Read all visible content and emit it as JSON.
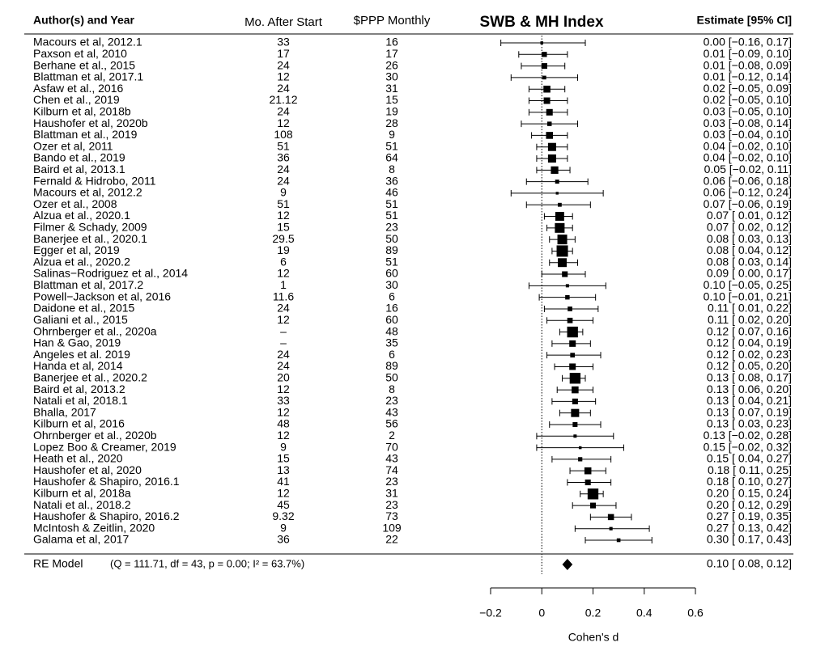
{
  "chart_data": {
    "type": "forest",
    "headers": {
      "study": "Author(s) and Year",
      "months": "Mo. After Start",
      "ppp": "$PPP Monthly",
      "title": "SWB & MH Index",
      "estimate": "Estimate [95% CI]"
    },
    "categories": [
      "Macours et al, 2012.1",
      "Paxson et al, 2010",
      "Berhane et al., 2015",
      "Blattman et al, 2017.1",
      "Asfaw et al., 2016",
      "Chen et al., 2019",
      "Kilburn et al, 2018b",
      "Haushofer et al, 2020b",
      "Blattman et al., 2019",
      "Ozer et al, 2011",
      "Bando et al., 2019",
      "Baird et al, 2013.1",
      "Fernald & Hidrobo, 2011",
      "Macours et al, 2012.2",
      "Ozer et al., 2008",
      "Alzua et al., 2020.1",
      "Filmer & Schady, 2009",
      "Banerjee et al., 2020.1",
      "Egger et al, 2019",
      "Alzua et al., 2020.2",
      "Salinas−Rodriguez et al., 2014",
      "Blattman et al, 2017.2",
      "Powell−Jackson et al, 2016",
      "Daidone et al., 2015",
      "Galiani et al., 2015",
      "Ohrnberger et al., 2020a",
      "Han & Gao, 2019",
      "Angeles et al. 2019",
      "Handa et al, 2014",
      "Banerjee et al., 2020.2",
      "Baird et al, 2013.2",
      "Natali et al, 2018.1",
      "Bhalla, 2017",
      "Kilburn et al, 2016",
      "Ohrnberger et al., 2020b",
      "Lopez Boo & Creamer, 2019",
      "Heath et al., 2020",
      "Haushofer et al, 2020",
      "Haushofer & Shapiro, 2016.1",
      "Kilburn et al, 2018a",
      "Natali et al., 2018.2",
      "Haushofer & Shapiro, 2016.2",
      "McIntosh & Zeitlin, 2020",
      "Galama et al, 2017"
    ],
    "months": [
      33,
      17,
      24,
      12,
      24,
      21.12,
      24,
      12,
      108,
      51,
      36,
      24,
      24,
      9,
      51,
      12,
      15,
      29.5,
      19,
      6,
      12,
      1,
      11.6,
      24,
      12,
      "–",
      "–",
      24,
      24,
      20,
      12,
      33,
      12,
      48,
      12,
      9,
      15,
      13,
      41,
      12,
      45,
      9.32,
      9,
      36
    ],
    "ppp": [
      16,
      17,
      26,
      30,
      31,
      15,
      19,
      28,
      9,
      51,
      64,
      8,
      36,
      46,
      51,
      51,
      23,
      50,
      89,
      51,
      60,
      30,
      6,
      16,
      60,
      48,
      35,
      6,
      89,
      50,
      8,
      23,
      43,
      56,
      2,
      70,
      43,
      74,
      23,
      31,
      23,
      73,
      109,
      22
    ],
    "values": [
      0.0,
      0.01,
      0.01,
      0.01,
      0.02,
      0.02,
      0.03,
      0.03,
      0.03,
      0.04,
      0.04,
      0.05,
      0.06,
      0.06,
      0.07,
      0.07,
      0.07,
      0.08,
      0.08,
      0.08,
      0.09,
      0.1,
      0.1,
      0.11,
      0.11,
      0.12,
      0.12,
      0.12,
      0.12,
      0.13,
      0.13,
      0.13,
      0.13,
      0.13,
      0.13,
      0.15,
      0.15,
      0.18,
      0.18,
      0.2,
      0.2,
      0.27,
      0.27,
      0.3
    ],
    "lower": [
      -0.16,
      -0.09,
      -0.08,
      -0.12,
      -0.05,
      -0.05,
      -0.05,
      -0.08,
      -0.04,
      -0.02,
      -0.02,
      -0.02,
      -0.06,
      -0.12,
      -0.06,
      0.01,
      0.02,
      0.03,
      0.04,
      0.03,
      0.0,
      -0.05,
      -0.01,
      0.01,
      0.02,
      0.07,
      0.04,
      0.02,
      0.05,
      0.08,
      0.06,
      0.04,
      0.07,
      0.03,
      -0.02,
      -0.02,
      0.04,
      0.11,
      0.1,
      0.15,
      0.12,
      0.19,
      0.13,
      0.17
    ],
    "upper": [
      0.17,
      0.1,
      0.09,
      0.14,
      0.09,
      0.1,
      0.1,
      0.14,
      0.1,
      0.1,
      0.1,
      0.11,
      0.18,
      0.24,
      0.19,
      0.12,
      0.12,
      0.13,
      0.12,
      0.14,
      0.17,
      0.25,
      0.21,
      0.22,
      0.2,
      0.16,
      0.19,
      0.23,
      0.2,
      0.17,
      0.2,
      0.21,
      0.19,
      0.23,
      0.28,
      0.32,
      0.27,
      0.25,
      0.27,
      0.24,
      0.29,
      0.35,
      0.42,
      0.43
    ],
    "value_labels": [
      "0.00 [−0.16, 0.17]",
      "0.01 [−0.09, 0.10]",
      "0.01 [−0.08, 0.09]",
      "0.01 [−0.12, 0.14]",
      "0.02 [−0.05, 0.09]",
      "0.02 [−0.05, 0.10]",
      "0.03 [−0.05, 0.10]",
      "0.03 [−0.08, 0.14]",
      "0.03 [−0.04, 0.10]",
      "0.04 [−0.02, 0.10]",
      "0.04 [−0.02, 0.10]",
      "0.05 [−0.02, 0.11]",
      "0.06 [−0.06, 0.18]",
      "0.06 [−0.12, 0.24]",
      "0.07 [−0.06, 0.19]",
      "0.07 [ 0.01, 0.12]",
      "0.07 [ 0.02, 0.12]",
      "0.08 [ 0.03, 0.13]",
      "0.08 [ 0.04, 0.12]",
      "0.08 [ 0.03, 0.14]",
      "0.09 [ 0.00, 0.17]",
      "0.10 [−0.05, 0.25]",
      "0.10 [−0.01, 0.21]",
      "0.11 [ 0.01, 0.22]",
      "0.11 [ 0.02, 0.20]",
      "0.12 [ 0.07, 0.16]",
      "0.12 [ 0.04, 0.19]",
      "0.12 [ 0.02, 0.23]",
      "0.12 [ 0.05, 0.20]",
      "0.13 [ 0.08, 0.17]",
      "0.13 [ 0.06, 0.20]",
      "0.13 [ 0.04, 0.21]",
      "0.13 [ 0.07, 0.19]",
      "0.13 [ 0.03, 0.23]",
      "0.13 [−0.02, 0.28]",
      "0.15 [−0.02, 0.32]",
      "0.15 [ 0.04, 0.27]",
      "0.18 [ 0.11, 0.25]",
      "0.18 [ 0.10, 0.27]",
      "0.20 [ 0.15, 0.24]",
      "0.20 [ 0.12, 0.29]",
      "0.27 [ 0.19, 0.35]",
      "0.27 [ 0.13, 0.42]",
      "0.30 [ 0.17, 0.43]"
    ],
    "summary": {
      "label": "RE Model",
      "stats": "(Q = 111.71, df = 43, p = 0.00; I² = 63.7%)",
      "value": 0.1,
      "lower": 0.08,
      "upper": 0.12,
      "value_label": "0.10 [ 0.08, 0.12]"
    },
    "xlim": [
      -0.2,
      0.6
    ],
    "xticks": [
      {
        "value": -0.2,
        "label": "−0.2"
      },
      0,
      0.2,
      0.4,
      0.6
    ],
    "xlabel": "Cohen's d",
    "color": "#000000"
  }
}
